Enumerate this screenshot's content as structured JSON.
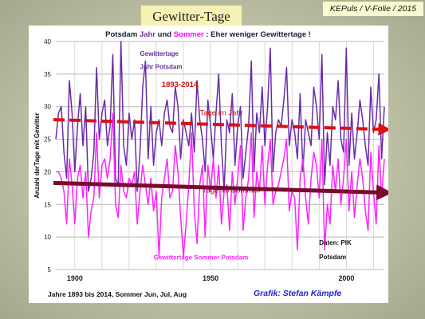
{
  "slide": {
    "title": "Gewitter-Tage",
    "footer": "KEPuls / V-Folie / 2015"
  },
  "chart_data": {
    "type": "line",
    "title_parts": [
      {
        "text": "Potsdam ",
        "color": "#1a1a3a"
      },
      {
        "text": "Jahr",
        "color": "#7030a0"
      },
      {
        "text": " und ",
        "color": "#1a1a3a"
      },
      {
        "text": "Sommer",
        "color": "#ff00ff"
      },
      {
        "text": " : Eher weniger Gewittertage !",
        "color": "#1a1a3a"
      }
    ],
    "ylabel": "Anzahl derTage mit Gewitter",
    "xlabel": "Jahre 1893 bis 2014, Sommer Jun, Jul, Aug",
    "credit": "Grafik: Stefan Kämpfe",
    "ylim": [
      5,
      40
    ],
    "yticks": [
      5,
      10,
      15,
      20,
      25,
      30,
      35,
      40
    ],
    "xlim": [
      1893,
      2014
    ],
    "xticks": [
      1900,
      1950,
      2000
    ],
    "colors": {
      "year": "#6a2aa8",
      "summer": "#ff22ff",
      "trend_year": "#dd1111",
      "trend_summer": "#7a0a2a",
      "credit": "#2222cc"
    },
    "series": [
      {
        "name": "Jahr",
        "start_year": 1893,
        "values": [
          25,
          29,
          30,
          23,
          19,
          34,
          29,
          20,
          27,
          32,
          24,
          30,
          17,
          19,
          23,
          36,
          25,
          29,
          31,
          24,
          27,
          38,
          19,
          18,
          40,
          24,
          21,
          29,
          25,
          28,
          17,
          23,
          33,
          37,
          22,
          30,
          21,
          26,
          28,
          24,
          29,
          31,
          27,
          26,
          33,
          30,
          22,
          28,
          26,
          24,
          29,
          23,
          34,
          28,
          25,
          20,
          31,
          27,
          22,
          29,
          35,
          24,
          17,
          28,
          26,
          32,
          21,
          27,
          30,
          19,
          23,
          27,
          37,
          20,
          29,
          26,
          33,
          24,
          30,
          39,
          20,
          26,
          28,
          27,
          31,
          36,
          24,
          28,
          26,
          22,
          32,
          20,
          28,
          26,
          24,
          33,
          30,
          25,
          38,
          18,
          26,
          21,
          30,
          28,
          34,
          25,
          23,
          39,
          21,
          29,
          22,
          26,
          31,
          28,
          24,
          21,
          33,
          26,
          28,
          35,
          22,
          30
        ]
      },
      {
        "name": "Sommer",
        "start_year": 1893,
        "values": [
          20,
          20,
          19,
          17,
          12,
          22,
          18,
          12,
          19,
          21,
          16,
          20,
          10,
          14,
          16,
          26,
          16,
          21,
          22,
          19,
          22,
          29,
          15,
          13,
          21,
          17,
          16,
          19,
          18,
          20,
          12,
          17,
          21,
          18,
          15,
          19,
          14,
          17,
          7,
          16,
          19,
          22,
          16,
          17,
          24,
          20,
          13,
          7,
          12,
          18,
          26,
          14,
          9,
          18,
          21,
          10,
          21,
          17,
          22,
          16,
          21,
          12,
          17,
          18,
          11,
          20,
          15,
          19,
          24,
          11,
          16,
          19,
          26,
          13,
          20,
          17,
          24,
          15,
          21,
          25,
          15,
          17,
          18,
          20,
          22,
          25,
          14,
          17,
          16,
          8,
          19,
          22,
          16,
          12,
          19,
          23,
          21,
          16,
          25,
          8,
          15,
          12,
          21,
          17,
          22,
          15,
          19,
          25,
          14,
          20,
          13,
          18,
          22,
          19,
          14,
          11,
          23,
          17,
          12,
          24,
          16,
          22
        ]
      }
    ],
    "trends": [
      {
        "name": "Tage im Jahr",
        "start": [
          1893,
          28.0
        ],
        "end": [
          2014,
          26.5
        ]
      },
      {
        "name": "Tage im Sommer",
        "start": [
          1893,
          18.3
        ],
        "end": [
          2014,
          16.8
        ]
      }
    ],
    "annotations": [
      {
        "text": "Gewittertage",
        "color": "#6a2aa8",
        "bold": true,
        "x": 1924,
        "y": 37.8
      },
      {
        "text": "Jahr  Potsdam",
        "color": "#6a2aa8",
        "bold": true,
        "x": 1924,
        "y": 35.8
      },
      {
        "text": "1893-2014",
        "color": "#cc1111",
        "bold": true,
        "serif": true,
        "x": 1932,
        "y": 33.0
      },
      {
        "text": "Tage im Jahr",
        "color": "#cc1111",
        "bold": false,
        "serif": true,
        "x": 1946,
        "y": 28.7
      },
      {
        "text": "Tage im Sommer",
        "color": "#7a0a2a",
        "bold": false,
        "serif": true,
        "x": 1947,
        "y": 16.8
      },
      {
        "text": "Gewittertage  Sommer  Potsdam",
        "color": "#ff22ff",
        "bold": true,
        "x": 1929,
        "y": 6.5
      },
      {
        "text": "Daten: PIK",
        "color": "#111111",
        "bold": true,
        "x": 1990,
        "y": 8.8
      },
      {
        "text": "Potsdam",
        "color": "#111111",
        "bold": true,
        "x": 1990,
        "y": 6.6
      }
    ]
  }
}
